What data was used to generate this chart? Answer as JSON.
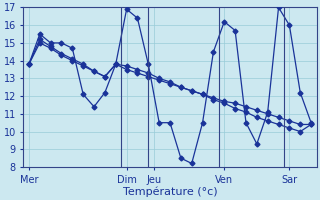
{
  "title": "Température (°c)",
  "bg_color": "#cce8f0",
  "grid_color": "#99ccd9",
  "line_color": "#1a3399",
  "markersize": 2.5,
  "linewidth": 0.9,
  "ylim": [
    8,
    17
  ],
  "yticks": [
    8,
    9,
    10,
    11,
    12,
    13,
    14,
    15,
    16,
    17
  ],
  "xlabel_fontsize": 8,
  "tick_fontsize": 7,
  "day_labels": [
    "Mer",
    "Dim",
    "Jeu",
    "Ven",
    "Sar"
  ],
  "day_x": [
    0,
    9,
    11.5,
    18,
    24
  ],
  "vline_x": [
    8.5,
    11.0,
    17.5,
    23.5
  ],
  "n_points": 27,
  "s1": [
    13.8,
    15.5,
    15.0,
    15.0,
    14.7,
    12.1,
    11.4,
    12.2,
    13.8,
    16.9,
    16.4,
    13.8,
    10.5,
    10.5,
    8.5,
    8.2,
    10.5,
    14.5,
    16.2,
    15.7,
    10.5,
    9.3,
    11.1,
    17.0,
    16.0,
    12.2,
    10.5
  ],
  "s2": [
    13.8,
    15.2,
    14.8,
    14.4,
    14.1,
    13.8,
    13.4,
    13.1,
    13.8,
    13.7,
    13.5,
    13.3,
    13.0,
    12.8,
    12.5,
    12.3,
    12.1,
    11.8,
    11.6,
    11.3,
    11.1,
    10.8,
    10.6,
    10.4,
    10.2,
    10.0,
    10.4
  ],
  "s3": [
    13.8,
    15.0,
    14.7,
    14.3,
    14.0,
    13.7,
    13.4,
    13.1,
    13.8,
    13.5,
    13.3,
    13.1,
    12.9,
    12.7,
    12.5,
    12.3,
    12.1,
    11.9,
    11.7,
    11.6,
    11.4,
    11.2,
    11.0,
    10.8,
    10.6,
    10.4,
    10.4
  ]
}
